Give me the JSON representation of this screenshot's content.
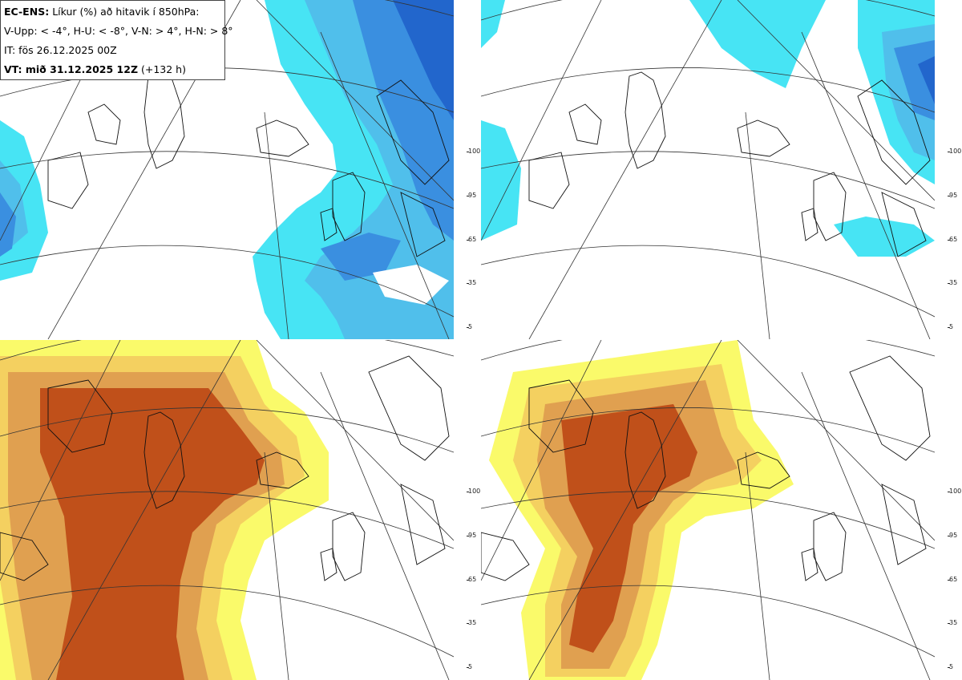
{
  "legend": {
    "line1_bold": "EC-ENS:",
    "line1_rest": "Líkur (%) að hitavik í 850hPa:",
    "line2": "V-Upp: < -4°, H-U: < -8°, V-N: > 4°, H-N: > 8°",
    "line3": "IT: fös 26.12.2025 00Z",
    "line4_bold": "VT: mið 31.12.2025 12Z",
    "line4_rest": "(+132 h)"
  },
  "colorbar_ticks": [
    "100",
    "95",
    "65",
    "35",
    "5"
  ],
  "colors": {
    "blue": [
      "#8ef7fb",
      "#47e4f4",
      "#50bfeb",
      "#3a8fe0",
      "#2266cc"
    ],
    "orange": [
      "#fafa6a",
      "#f4d060",
      "#e0a050",
      "#d07030",
      "#c0501a"
    ]
  },
  "panels": [
    {
      "name": "cold-moderate",
      "palette": "blue"
    },
    {
      "name": "cold-strong",
      "palette": "blue"
    },
    {
      "name": "warm-moderate",
      "palette": "orange"
    },
    {
      "name": "warm-strong",
      "palette": "orange"
    }
  ]
}
